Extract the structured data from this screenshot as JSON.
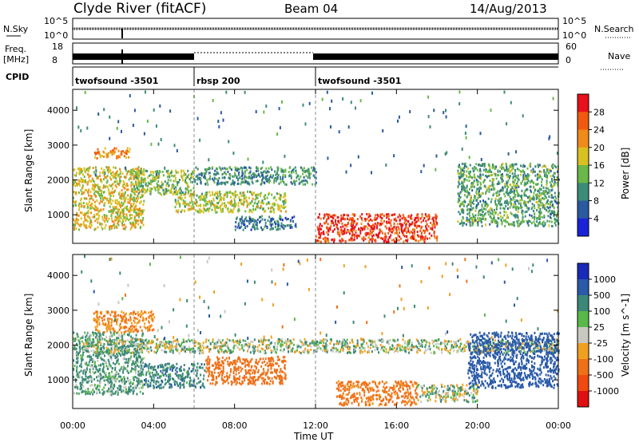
{
  "header": {
    "station": "Clyde River (fitACF)",
    "beam": "Beam 04",
    "date": "14/Aug/2013"
  },
  "status_panels": {
    "nsky_label": "N.Sky",
    "nsky_ticks": [
      "10^5",
      "10^0"
    ],
    "nsearch_label": "N.Search",
    "nsearch_ticks": [
      "10^5",
      "10^0"
    ],
    "freq_label_1": "Freq.",
    "freq_label_2": "[MHz]",
    "freq_ticks": [
      "18",
      "8"
    ],
    "nave_label": "Nave",
    "nave_ticks": [
      "60",
      "0"
    ],
    "cpid_label": "CPID",
    "cpid_segments": [
      {
        "label": "twofsound -3501",
        "start_hour": 0,
        "end_hour": 6
      },
      {
        "label": "rbsp 200",
        "start_hour": 6,
        "end_hour": 12
      },
      {
        "label": "twofsound -3501",
        "start_hour": 12,
        "end_hour": 24
      }
    ]
  },
  "colorbars": {
    "power": {
      "title": "Power [dB]",
      "ticks": [
        "28",
        "24",
        "20",
        "16",
        "12",
        "8",
        "4"
      ],
      "colors": [
        "#e8101a",
        "#f05a10",
        "#f08a18",
        "#d8c020",
        "#6ab848",
        "#3c8c78",
        "#2a5aa0",
        "#1a22d8"
      ]
    },
    "velocity": {
      "title": "Velocity [m s^-1]",
      "ticks": [
        "1000",
        "500",
        "100",
        "25",
        "-25",
        "-100",
        "-500",
        "-1000"
      ],
      "colors": [
        "#1a2ab8",
        "#2a5aa8",
        "#3c8878",
        "#58b848",
        "#c8c8c0",
        "#f0a020",
        "#f07018",
        "#f04a10",
        "#e01010"
      ]
    }
  },
  "chart_data": [
    {
      "type": "heatmap",
      "title": "",
      "xlabel": "",
      "ylabel": "Slant Range [km]",
      "xlim_hours": [
        0,
        24
      ],
      "ylim": [
        180,
        4600
      ],
      "yticks": [
        1000,
        2000,
        3000,
        4000
      ],
      "quantity": "Power [dB]",
      "regions": [
        {
          "x": [
            0.0,
            3.5
          ],
          "y": [
            600,
            2400
          ],
          "value": 18
        },
        {
          "x": [
            1.0,
            2.8
          ],
          "y": [
            2650,
            2950
          ],
          "value": 22
        },
        {
          "x": [
            3.0,
            6.0
          ],
          "y": [
            1600,
            2300
          ],
          "value": 14
        },
        {
          "x": [
            6.0,
            12.0
          ],
          "y": [
            1900,
            2400
          ],
          "value": 10
        },
        {
          "x": [
            5.0,
            10.5
          ],
          "y": [
            1100,
            1700
          ],
          "value": 16
        },
        {
          "x": [
            8.0,
            11.0
          ],
          "y": [
            600,
            1000
          ],
          "value": 8
        },
        {
          "x": [
            12.0,
            18.0
          ],
          "y": [
            250,
            1050
          ],
          "value": 28
        },
        {
          "x": [
            19.0,
            24.0
          ],
          "y": [
            700,
            2500
          ],
          "value": 12
        }
      ]
    },
    {
      "type": "heatmap",
      "title": "",
      "xlabel": "Time UT",
      "ylabel": "Slant Range [km]",
      "xlim_hours": [
        0,
        24
      ],
      "ylim": [
        180,
        4600
      ],
      "yticks": [
        1000,
        2000,
        3000,
        4000
      ],
      "xticks": [
        "00:00",
        "04:00",
        "08:00",
        "12:00",
        "16:00",
        "20:00",
        "00:00"
      ],
      "quantity": "Velocity [m s^-1]",
      "regions": [
        {
          "x": [
            0.0,
            3.5
          ],
          "y": [
            600,
            2400
          ],
          "value": 100
        },
        {
          "x": [
            0.5,
            24.0
          ],
          "y": [
            1800,
            2200
          ],
          "value": 0
        },
        {
          "x": [
            1.0,
            4.0
          ],
          "y": [
            2400,
            3000
          ],
          "value": -300
        },
        {
          "x": [
            6.5,
            10.5
          ],
          "y": [
            900,
            1700
          ],
          "value": -600
        },
        {
          "x": [
            3.5,
            6.5
          ],
          "y": [
            800,
            1500
          ],
          "value": 200
        },
        {
          "x": [
            13.0,
            17.0
          ],
          "y": [
            300,
            1000
          ],
          "value": -400
        },
        {
          "x": [
            17.0,
            20.0
          ],
          "y": [
            400,
            900
          ],
          "value": 0
        },
        {
          "x": [
            19.5,
            24.0
          ],
          "y": [
            800,
            2400
          ],
          "value": 600
        }
      ]
    }
  ]
}
